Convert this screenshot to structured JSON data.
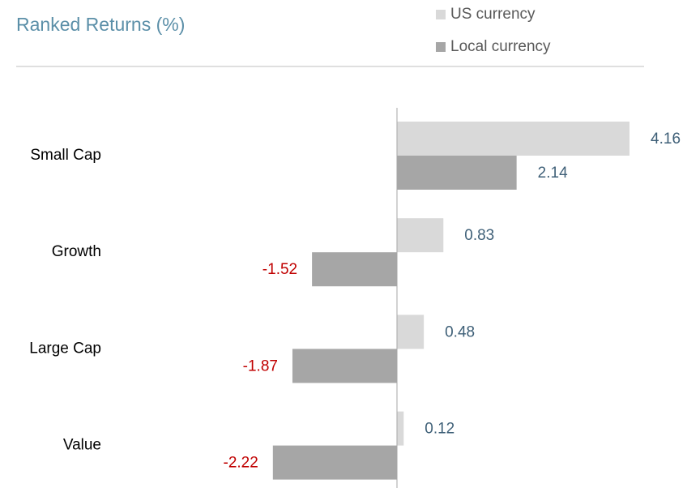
{
  "chart_data": {
    "type": "hbar",
    "title": "Ranked Returns (%)",
    "categories": [
      "Small Cap",
      "Growth",
      "Large Cap",
      "Value"
    ],
    "series": [
      {
        "name": "US currency",
        "color": "#d9d9d9",
        "values": [
          4.16,
          0.83,
          0.48,
          0.12
        ]
      },
      {
        "name": "Local currency",
        "color": "#a6a6a6",
        "values": [
          2.14,
          -1.52,
          -1.87,
          -2.22
        ]
      }
    ],
    "xlim": [
      -2.5,
      4.5
    ],
    "label_color": "#3f6078",
    "negative_label_color": "#c00000",
    "title_color": "#5b8fa8"
  }
}
